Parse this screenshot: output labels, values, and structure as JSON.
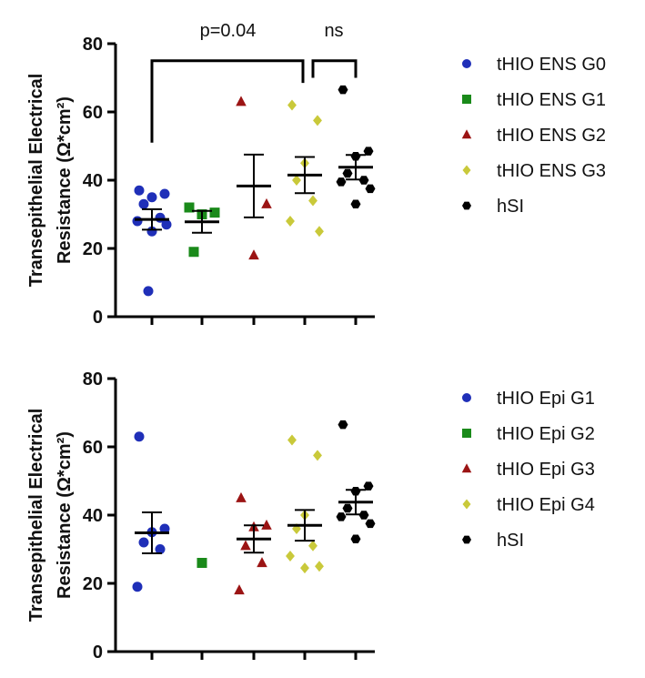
{
  "colors": {
    "blue": "#1f2fb8",
    "green": "#1a8a1a",
    "red": "#9b1414",
    "yellow": "#c9c93a",
    "black": "#000000"
  },
  "chart_data": [
    {
      "type": "scatter",
      "ylabel_lines": [
        "Transepithelial Electrical",
        "Resistance (Ω*cm²)"
      ],
      "ylim": [
        0,
        80
      ],
      "yticks": [
        0,
        20,
        40,
        60,
        80
      ],
      "legend_position": "right",
      "series": [
        {
          "name": "tHIO ENS G0",
          "marker": "circle",
          "color": "blue",
          "values": [
            37,
            36,
            35,
            33,
            29,
            28,
            27,
            25,
            7.5
          ],
          "mean": 28.5,
          "sem": 3.0
        },
        {
          "name": "tHIO ENS G1",
          "marker": "square",
          "color": "green",
          "values": [
            32,
            30.5,
            30,
            19
          ],
          "mean": 27.8,
          "sem": 3.2
        },
        {
          "name": "tHIO ENS G2",
          "marker": "triangle",
          "color": "red",
          "values": [
            63,
            33,
            18
          ],
          "mean": 38.3,
          "sem": 9.2
        },
        {
          "name": "tHIO ENS G3",
          "marker": "diamond",
          "color": "yellow",
          "values": [
            62,
            57.5,
            45,
            40,
            34,
            28,
            25
          ],
          "mean": 41.5,
          "sem": 5.3
        },
        {
          "name": "hSI",
          "marker": "hexagon",
          "color": "black",
          "values": [
            66.5,
            48.5,
            47,
            42,
            40,
            39.5,
            37.5,
            33
          ],
          "mean": 43.8,
          "sem": 3.6
        }
      ],
      "annotations": [
        {
          "text": "p=0.04",
          "from_group": 0,
          "to_group": 3,
          "y": 75
        },
        {
          "text": "ns",
          "from_group": 3,
          "to_group": 4,
          "y": 75
        }
      ]
    },
    {
      "type": "scatter",
      "ylabel_lines": [
        "Transepithelial Electrical",
        "Resistance (Ω*cm²)"
      ],
      "ylim": [
        0,
        80
      ],
      "yticks": [
        0,
        20,
        40,
        60,
        80
      ],
      "legend_position": "right",
      "series": [
        {
          "name": "tHIO Epi G1",
          "marker": "circle",
          "color": "blue",
          "values": [
            63,
            36,
            35,
            32,
            30,
            19
          ],
          "mean": 34.8,
          "sem": 6.0
        },
        {
          "name": "tHIO Epi G2",
          "marker": "square",
          "color": "green",
          "values": [
            26
          ],
          "mean": null,
          "sem": null
        },
        {
          "name": "tHIO Epi G3",
          "marker": "triangle",
          "color": "red",
          "values": [
            45,
            37,
            36.5,
            31,
            26,
            18
          ],
          "mean": 33.0,
          "sem": 4.0
        },
        {
          "name": "tHIO Epi G4",
          "marker": "diamond",
          "color": "yellow",
          "values": [
            62,
            57.5,
            40,
            36,
            31,
            28,
            25,
            24.5
          ],
          "mean": 37.0,
          "sem": 4.5
        },
        {
          "name": "hSI",
          "marker": "hexagon",
          "color": "black",
          "values": [
            66.5,
            48.5,
            47,
            42,
            40,
            39.5,
            37.5,
            33
          ],
          "mean": 43.8,
          "sem": 3.6
        }
      ],
      "annotations": []
    }
  ]
}
